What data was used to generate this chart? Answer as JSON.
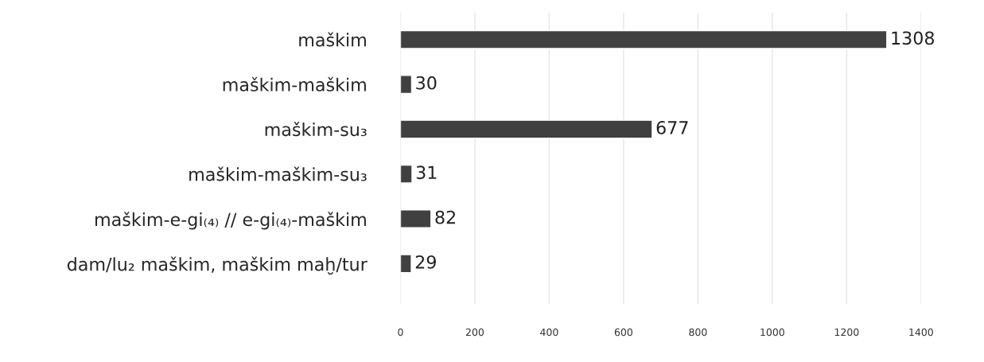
{
  "chart_data": {
    "type": "bar",
    "orientation": "horizontal",
    "categories": [
      "maškim",
      "maškim-maškim",
      "maškim-su₃",
      "maškim-maškim-su₃",
      "maškim-e-gi₍₄₎ // e-gi₍₄₎-maškim",
      "dam/lu₂ maškim, maškim maḫ/tur"
    ],
    "values": [
      1308,
      30,
      677,
      31,
      82,
      29
    ],
    "color": "#404040",
    "xlim": [
      0,
      1400
    ],
    "xticks": [
      0,
      200,
      400,
      600,
      800,
      1000,
      1200,
      1400
    ],
    "grid": "x",
    "data_labels": true
  }
}
